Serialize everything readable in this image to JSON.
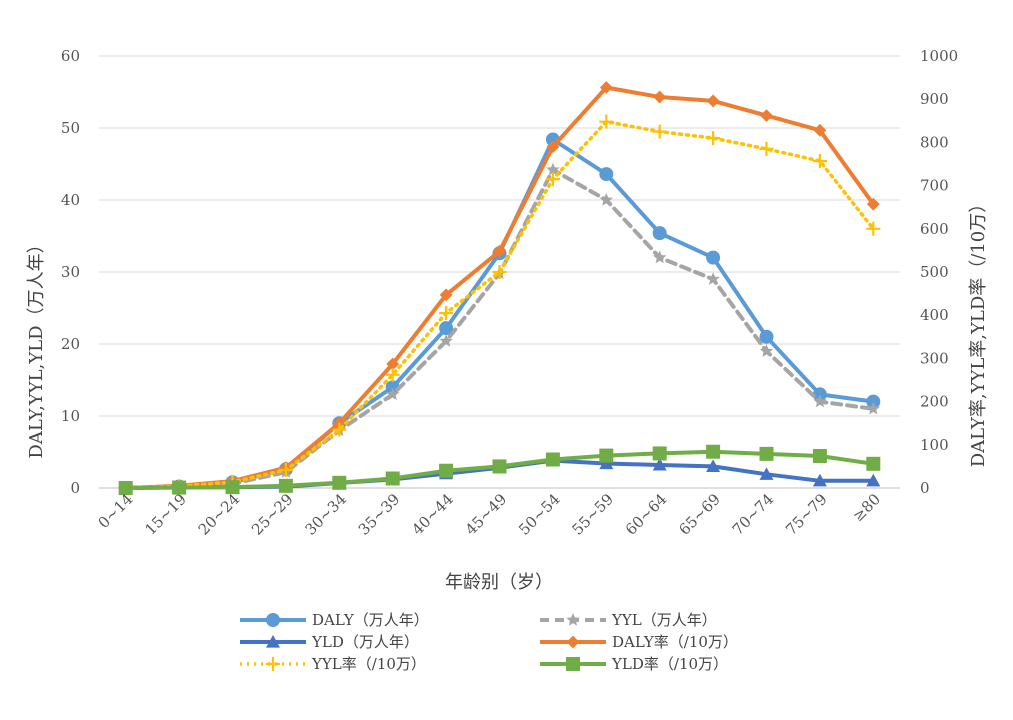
{
  "chart_data": {
    "type": "line",
    "categories": [
      "0~14",
      "15~19",
      "20~24",
      "25~29",
      "30~34",
      "35~39",
      "40~44",
      "45~49",
      "50~54",
      "55~59",
      "60~64",
      "65~69",
      "70~74",
      "75~79",
      "≥80"
    ],
    "xlabel": "年龄别（岁）",
    "ylabel": "DALY,YYL,YLD（万人年）",
    "ylabel_right": "DALY率,YYL率,YLD率（/10万）",
    "ylim": [
      0,
      60
    ],
    "ylim_right": [
      0,
      1000
    ],
    "yticks": [
      0,
      10,
      20,
      30,
      40,
      50,
      60
    ],
    "yticks_right": [
      0,
      100,
      200,
      300,
      400,
      500,
      600,
      700,
      800,
      900,
      1000
    ],
    "grid": "horizontal",
    "legend_position": "bottom",
    "series": [
      {
        "name": "DALY（万人年）",
        "axis": "left",
        "color": "#5B9BD5",
        "style": "solid",
        "marker": "circle",
        "values": [
          0,
          0.2,
          0.8,
          2.6,
          9.0,
          14.0,
          22.2,
          32.6,
          48.4,
          43.6,
          35.4,
          32.0,
          21.0,
          13.0,
          12.0
        ]
      },
      {
        "name": "YYL（万人年）",
        "axis": "left",
        "color": "#A5A5A5",
        "style": "dashed",
        "marker": "star",
        "values": [
          0,
          0.2,
          0.6,
          2.2,
          8.0,
          13.0,
          20.4,
          29.8,
          44.2,
          40.0,
          32.0,
          29.0,
          19.0,
          12.0,
          11.0
        ]
      },
      {
        "name": "YLD（万人年）",
        "axis": "left",
        "color": "#4472C4",
        "style": "solid",
        "marker": "triangle",
        "values": [
          0,
          0.1,
          0.1,
          0.2,
          0.7,
          1.2,
          2.0,
          2.8,
          3.8,
          3.4,
          3.2,
          3.0,
          1.9,
          1.0,
          1.0
        ]
      },
      {
        "name": "DALY率（/10万）",
        "axis": "right",
        "color": "#ED7D31",
        "style": "solid",
        "marker": "diamond",
        "values": [
          0,
          5,
          16,
          47,
          150,
          287,
          447,
          548,
          790,
          927,
          905,
          896,
          862,
          828,
          657
        ]
      },
      {
        "name": "YYL率（/10万）",
        "axis": "right",
        "color": "#FFC000",
        "style": "dotted",
        "marker": "plus",
        "values": [
          0,
          4,
          14,
          42,
          135,
          262,
          405,
          500,
          715,
          848,
          825,
          810,
          785,
          757,
          600
        ]
      },
      {
        "name": "YLD率（/10万）",
        "axis": "right",
        "color": "#70AD47",
        "style": "solid",
        "marker": "square",
        "values": [
          0,
          1,
          2,
          5,
          12,
          22,
          40,
          50,
          66,
          75,
          80,
          84,
          79,
          74,
          56
        ]
      }
    ]
  }
}
